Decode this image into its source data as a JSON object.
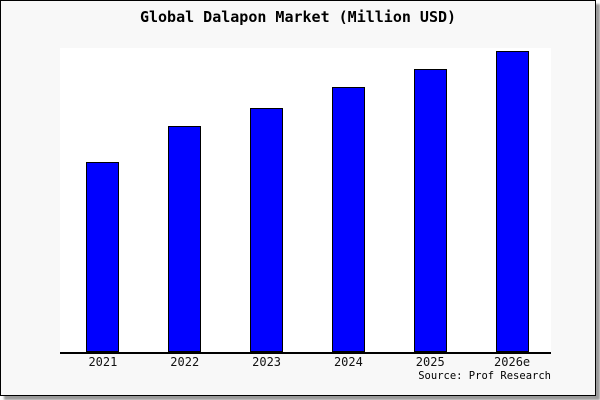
{
  "title": "Global Dalapon Market (Million USD)",
  "source_credit": "Source: Prof Research",
  "colors": {
    "bar_fill": "#0000ff",
    "bar_border": "#000000",
    "panel_background": "#f8f8f8",
    "plot_background": "#ffffff",
    "axis": "#000000",
    "frame_border": "#000000",
    "frame_shadow": "#9a9a9a",
    "text": "#000000"
  },
  "chart_data": {
    "type": "bar",
    "title": "Global Dalapon Market (Million USD)",
    "categories": [
      "2021",
      "2022",
      "2023",
      "2024",
      "2025",
      "2026e"
    ],
    "values": [
      63,
      75,
      81,
      88,
      94,
      100
    ],
    "xlabel": "",
    "ylabel": "",
    "ylim": [
      0,
      101
    ],
    "value_units": "relative index, tallest bar (2026e) = 100; no numeric y-axis shown in chart",
    "y_axis_visible": false,
    "grid": false,
    "legend": false,
    "annotations": [
      "Source: Prof Research"
    ]
  }
}
